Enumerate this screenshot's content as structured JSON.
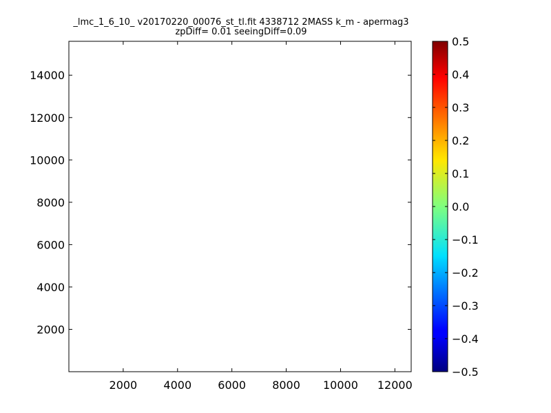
{
  "chart_data": {
    "type": "heatmap",
    "title": "_lmc_1_6_10_ v20170220_00076_st_tl.fit 4338712 2MASS k_m - apermag3",
    "subtitle": "zpDiff= 0.01 seeingDiff=0.09",
    "xlabel": "",
    "ylabel": "",
    "xlim": [
      0,
      12600
    ],
    "ylim": [
      0,
      15600
    ],
    "x_ticks": [
      2000,
      4000,
      6000,
      8000,
      10000,
      12000
    ],
    "y_ticks": [
      2000,
      4000,
      6000,
      8000,
      10000,
      12000,
      14000
    ],
    "x_tick_labels": [
      "2000",
      "4000",
      "6000",
      "8000",
      "10000",
      "12000"
    ],
    "y_tick_labels": [
      "2000",
      "4000",
      "6000",
      "8000",
      "10000",
      "12000",
      "14000"
    ],
    "colorbar": {
      "colormap": "jet",
      "range": [
        -0.5,
        0.5
      ],
      "ticks": [
        0.5,
        0.4,
        0.3,
        0.2,
        0.1,
        0.0,
        -0.1,
        -0.2,
        -0.3,
        -0.4,
        -0.5
      ],
      "tick_labels": [
        "0.5",
        "0.4",
        "0.3",
        "0.2",
        "0.1",
        "0.0",
        "−0.1",
        "−0.2",
        "−0.3",
        "−0.4",
        "−0.5"
      ]
    },
    "grid": false,
    "cell_size": 400,
    "x_start": 0,
    "y_start": 0,
    "missing_value_note": "null cells are empty (white)",
    "rows_top_to_bottom": [
      [
        null,
        null,
        null,
        null,
        null,
        null,
        null,
        null,
        null,
        null,
        null,
        null,
        null,
        null,
        null,
        null,
        null,
        null,
        null,
        null,
        null,
        null,
        null,
        null,
        null,
        null,
        null,
        null,
        null,
        null,
        null,
        null
      ],
      [
        null,
        null,
        null,
        null,
        null,
        null,
        null,
        null,
        null,
        null,
        null,
        null,
        null,
        null,
        null,
        null,
        null,
        null,
        null,
        null,
        null,
        null,
        null,
        null,
        null,
        null,
        null,
        null,
        null,
        null,
        null,
        null
      ],
      [
        null,
        null,
        null,
        null,
        null,
        null,
        null,
        null,
        null,
        null,
        null,
        null,
        null,
        null,
        null,
        null,
        null,
        null,
        null,
        null,
        null,
        null,
        null,
        null,
        null,
        null,
        null,
        null,
        null,
        null,
        null,
        null
      ],
      [
        null,
        null,
        null,
        null,
        null,
        null,
        null,
        null,
        null,
        null,
        null,
        null,
        null,
        null,
        null,
        null,
        null,
        null,
        null,
        null,
        null,
        null,
        null,
        null,
        null,
        null,
        null,
        null,
        null,
        null,
        null,
        null
      ],
      [
        null,
        null,
        null,
        null,
        null,
        null,
        null,
        null,
        null,
        null,
        null,
        null,
        null,
        null,
        null,
        null,
        null,
        null,
        null,
        null,
        null,
        null,
        null,
        null,
        null,
        null,
        null,
        null,
        null,
        null,
        null,
        null
      ],
      [
        null,
        null,
        null,
        null,
        null,
        null,
        null,
        null,
        null,
        null,
        null,
        null,
        null,
        null,
        null,
        null,
        null,
        null,
        null,
        null,
        null,
        null,
        null,
        null,
        null,
        null,
        null,
        null,
        null,
        null,
        null,
        null
      ],
      [
        null,
        null,
        null,
        null,
        null,
        null,
        null,
        null,
        null,
        null,
        null,
        null,
        null,
        null,
        null,
        null,
        null,
        null,
        null,
        null,
        null,
        null,
        null,
        null,
        null,
        null,
        null,
        null,
        null,
        null,
        null,
        null
      ],
      [
        null,
        null,
        null,
        null,
        null,
        null,
        null,
        null,
        null,
        null,
        null,
        null,
        null,
        null,
        null,
        null,
        null,
        null,
        null,
        null,
        null,
        null,
        null,
        null,
        null,
        null,
        null,
        null,
        null,
        null,
        null,
        null
      ]
    ]
  }
}
